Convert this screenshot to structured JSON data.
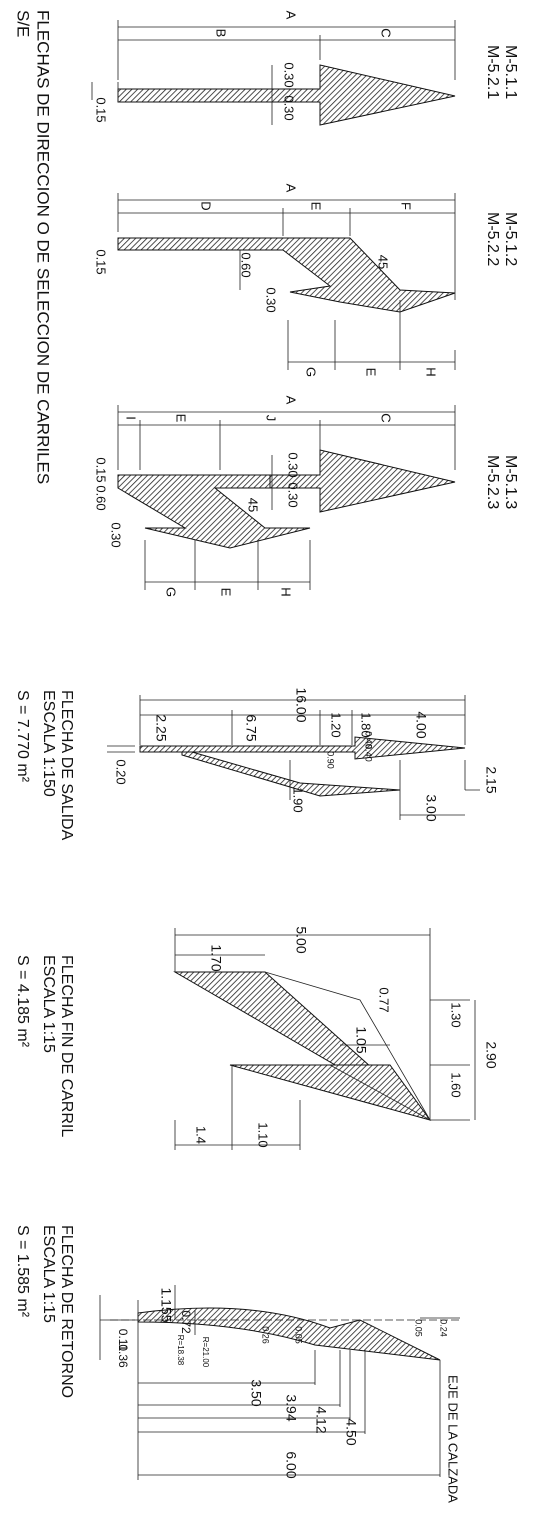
{
  "title": "FLECHAS DE DIRECCION O DE SELECCION DE CARRILES",
  "scale_note": "S/E",
  "arrows": [
    {
      "codes": [
        "M-5.1.1",
        "M-5.2.1"
      ],
      "dims": [
        "A",
        "B",
        "C",
        "0.30",
        "0.30",
        "0.15"
      ]
    },
    {
      "codes": [
        "M-5.1.2",
        "M-5.2.2"
      ],
      "dims": [
        "A",
        "D",
        "E",
        "F",
        "45",
        "0.60",
        "0.30",
        "0.15",
        "G",
        "E",
        "H"
      ]
    },
    {
      "codes": [
        "M-5.1.3",
        "M-5.2.3"
      ],
      "dims": [
        "A",
        "I",
        "E",
        "J",
        "C",
        "0.30",
        "0.30",
        "0.15",
        "0.60",
        "0.30",
        "45",
        "G",
        "E",
        "H"
      ]
    }
  ],
  "details": [
    {
      "title": "FLECHA DE SALIDA",
      "scale": "ESCALA 1:150",
      "area": "S = 7.770 m²",
      "dims": [
        "16.00",
        "2.25",
        "6.75",
        "1.20",
        "1.80",
        "4.00",
        "0.40",
        "0.40",
        "0.90",
        "2.15",
        "3.00",
        "1.90",
        "0.20"
      ]
    },
    {
      "title": "FLECHA FIN DE CARRIL",
      "scale": "ESCALA 1:15",
      "area": "S = 4.185 m²",
      "dims": [
        "5.00",
        "1.70",
        "1.05",
        "0.77",
        "1.30",
        "2.90",
        "1.60",
        "1.4",
        "1.10"
      ]
    },
    {
      "title": "FLECHA DE RETORNO",
      "scale": "ESCALA 1:15",
      "area": "S = 1.585 m²",
      "dims": [
        "1.155",
        "0.72",
        "R=18.38",
        "R=21.00",
        "0.26",
        "0.05",
        "0.05",
        "0.24",
        "0.11",
        "0.36",
        "3.50",
        "3.94",
        "4.12",
        "4.50",
        "6.00"
      ]
    }
  ],
  "axis_label": "EJE DE LA CALZADA"
}
